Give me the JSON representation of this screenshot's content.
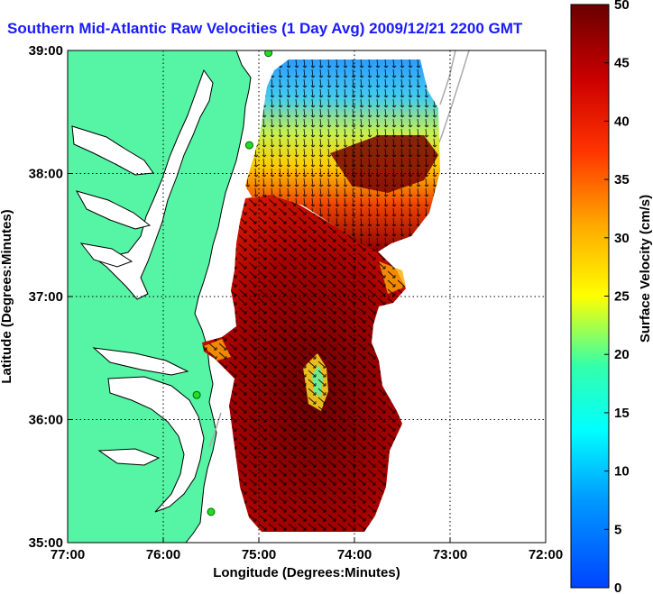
{
  "title": "Southern Mid-Atlantic Raw Velocities (1 Day Avg) 2009/12/21 2200 GMT",
  "map": {
    "xlabel": "Longitude (Degrees:Minutes)",
    "ylabel": "Latitude (Degrees:Minutes)",
    "x_ticks": [
      "77:00",
      "76:00",
      "75:00",
      "74:00",
      "73:00",
      "72:00"
    ],
    "y_ticks": [
      "39:00",
      "38:00",
      "37:00",
      "36:00",
      "35:00"
    ],
    "lon_range": [
      -77,
      -72
    ],
    "lat_range": [
      35,
      39
    ],
    "grid": "dotted"
  },
  "colorbar": {
    "label": "Surface Velocity (cm/s)",
    "ticks": [
      "0",
      "5",
      "10",
      "15",
      "20",
      "25",
      "30",
      "35",
      "40",
      "45",
      "50"
    ],
    "range": [
      0,
      50
    ],
    "colormap": "jet",
    "placement": "right"
  },
  "colors": {
    "land": "#55f5a5",
    "title": "#1a1aff",
    "station": "#22dd22"
  },
  "stations": [
    {
      "lon": -74.9,
      "lat": 38.98
    },
    {
      "lon": -75.1,
      "lat": 38.23
    },
    {
      "lon": -75.65,
      "lat": 36.2
    },
    {
      "lon": -75.5,
      "lat": 35.25
    }
  ]
}
